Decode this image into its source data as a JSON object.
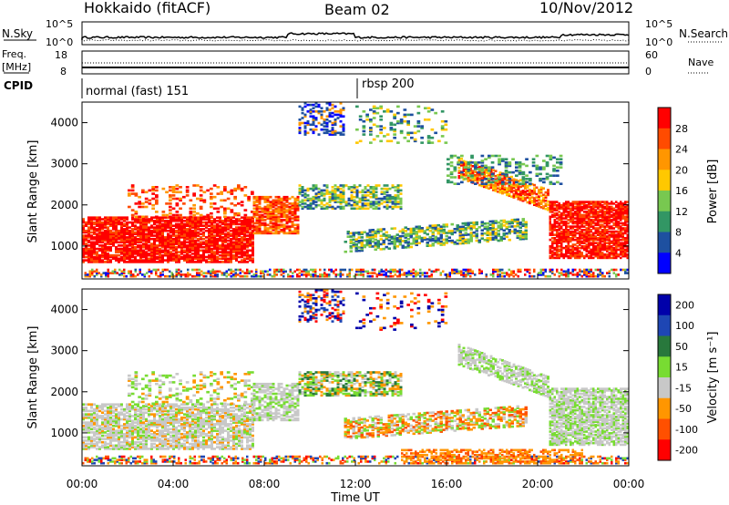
{
  "header": {
    "station": "Hokkaido (fitACF)",
    "beam": "Beam 02",
    "date": "10/Nov/2012"
  },
  "strips": {
    "nsky_label": "N.Sky",
    "nsky_ticks": [
      "10^5",
      "10^0"
    ],
    "nsearch_label": "N.Search",
    "nsearch_ticks": [
      "10^5",
      "10^0"
    ],
    "freq_label_1": "Freq.",
    "freq_label_2": "[MHz]",
    "freq_ticks": [
      "18",
      "8"
    ],
    "nave_label": "Nave",
    "nave_ticks": [
      "60",
      "0"
    ],
    "cpid_label": "CPID",
    "cpid_segments": [
      {
        "label": "normal (fast) 151",
        "start_hour": 0
      },
      {
        "label": "rbsp 200",
        "start_hour": 12.0
      }
    ]
  },
  "chart_data": [
    {
      "type": "heatmap",
      "title": "",
      "ylabel": "Slant Range [km]",
      "xlabel": "",
      "xlim": [
        0,
        24
      ],
      "ylim": [
        200,
        4500
      ],
      "yticks": [
        "1000",
        "2000",
        "3000",
        "4000"
      ],
      "colorbar": {
        "label": "Power [dB]",
        "ticks": [
          "28",
          "24",
          "20",
          "16",
          "12",
          "8",
          "4"
        ],
        "colors": [
          "#ff0000",
          "#ff4b00",
          "#ff9600",
          "#ffc800",
          "#78c850",
          "#329664",
          "#1e50a0",
          "#0000ff"
        ]
      }
    },
    {
      "type": "heatmap",
      "title": "",
      "ylabel": "Slant Range [km]",
      "xlabel": "Time UT",
      "xlim": [
        0,
        24
      ],
      "ylim": [
        200,
        4500
      ],
      "yticks": [
        "1000",
        "2000",
        "3000",
        "4000"
      ],
      "xticks": [
        "00:00",
        "04:00",
        "08:00",
        "12:00",
        "16:00",
        "20:00",
        "00:00"
      ],
      "colorbar": {
        "label": "Velocity [m s⁻¹]",
        "ticks": [
          "200",
          "100",
          "50",
          "15",
          "-15",
          "-50",
          "-100",
          "-200"
        ],
        "colors": [
          "#0000aa",
          "#1e46b4",
          "#28783c",
          "#78dc32",
          "#c8c8c8",
          "#ff9600",
          "#ff5000",
          "#ff0000"
        ]
      }
    }
  ]
}
